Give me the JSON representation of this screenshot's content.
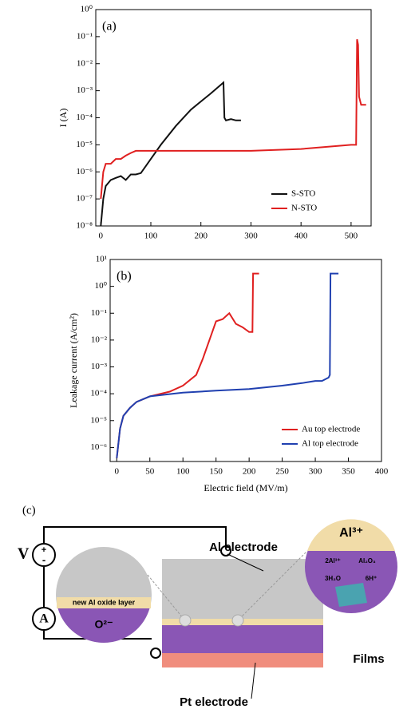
{
  "chart_data": [
    {
      "type": "line",
      "panel": "(a)",
      "y_label": "I (A)",
      "log": true,
      "legend": "lower right",
      "xlim": [
        -10,
        540
      ],
      "xticks": [
        0,
        100,
        200,
        300,
        400,
        500
      ],
      "ylim": [
        1e-08,
        1
      ],
      "yticks": [
        {
          "value": 1e-08,
          "label": "10⁻⁸"
        },
        {
          "value": 1e-07,
          "label": "10⁻⁷"
        },
        {
          "value": 1e-06,
          "label": "10⁻⁶"
        },
        {
          "value": 1e-05,
          "label": "10⁻⁵"
        },
        {
          "value": 0.0001,
          "label": "10⁻⁴"
        },
        {
          "value": 0.001,
          "label": "10⁻³"
        },
        {
          "value": 0.01,
          "label": "10⁻²"
        },
        {
          "value": 0.1,
          "label": "10⁻¹"
        },
        {
          "value": 1,
          "label": "10⁰"
        }
      ],
      "series": [
        {
          "name": "S-STO",
          "color": "#111111",
          "x": [
            0,
            5,
            10,
            20,
            30,
            40,
            50,
            60,
            70,
            80,
            100,
            120,
            150,
            180,
            200,
            220,
            245,
            247,
            250,
            260,
            270,
            280
          ],
          "values": [
            1e-08,
            1e-07,
            3e-07,
            5e-07,
            6e-07,
            7e-07,
            5e-07,
            8e-07,
            8e-07,
            9e-07,
            3e-06,
            1e-05,
            5e-05,
            0.0002,
            0.0004,
            0.0008,
            0.002,
            0.0001,
            8e-05,
            9e-05,
            8e-05,
            8e-05
          ]
        },
        {
          "name": "N-STO",
          "color": "#e02020",
          "x": [
            0,
            5,
            10,
            20,
            30,
            40,
            50,
            60,
            70,
            100,
            200,
            300,
            400,
            500,
            510,
            512,
            514,
            516,
            520,
            530
          ],
          "values": [
            1e-07,
            1e-06,
            2e-06,
            2e-06,
            3e-06,
            3e-06,
            4e-06,
            5e-06,
            6e-06,
            6e-06,
            6e-06,
            6e-06,
            7e-06,
            1e-05,
            1e-05,
            0.08,
            0.05,
            0.0006,
            0.0003,
            0.0003
          ]
        }
      ]
    },
    {
      "type": "line",
      "panel": "(b)",
      "x_label": "Electric field (MV/m)",
      "y_label": "Leakage current (A/cm²)",
      "log": true,
      "legend": "lower right",
      "xlim": [
        -10,
        400
      ],
      "xticks": [
        0,
        50,
        100,
        150,
        200,
        250,
        300,
        350,
        400
      ],
      "ylim": [
        3e-07,
        10
      ],
      "yticks": [
        {
          "value": 1e-06,
          "label": "10⁻⁶"
        },
        {
          "value": 1e-05,
          "label": "10⁻⁵"
        },
        {
          "value": 0.0001,
          "label": "10⁻⁴"
        },
        {
          "value": 0.001,
          "label": "10⁻³"
        },
        {
          "value": 0.01,
          "label": "10⁻²"
        },
        {
          "value": 0.1,
          "label": "10⁻¹"
        },
        {
          "value": 1,
          "label": "10⁰"
        },
        {
          "value": 10,
          "label": "10¹"
        }
      ],
      "series": [
        {
          "name": "Au top electrode",
          "color": "#e02020",
          "x": [
            0,
            5,
            10,
            20,
            30,
            50,
            80,
            100,
            120,
            130,
            140,
            150,
            160,
            170,
            180,
            190,
            200,
            205,
            206,
            215
          ],
          "values": [
            4e-07,
            5e-06,
            1.5e-05,
            3e-05,
            5e-05,
            8e-05,
            0.00012,
            0.0002,
            0.0005,
            0.002,
            0.01,
            0.05,
            0.06,
            0.1,
            0.04,
            0.03,
            0.02,
            0.02,
            3,
            3
          ]
        },
        {
          "name": "Al top electrode",
          "color": "#2040b0",
          "x": [
            0,
            5,
            10,
            20,
            30,
            50,
            100,
            150,
            200,
            250,
            280,
            300,
            310,
            320,
            322,
            323,
            335
          ],
          "values": [
            4e-07,
            5e-06,
            1.5e-05,
            3e-05,
            5e-05,
            8e-05,
            0.00011,
            0.00013,
            0.00015,
            0.0002,
            0.00025,
            0.0003,
            0.0003,
            0.0004,
            0.0005,
            3,
            3
          ]
        }
      ]
    }
  ],
  "diagram": {
    "panel": "(c)",
    "source": "V",
    "plus": "+",
    "minus": "-",
    "meter": "A",
    "top": "Al electrode",
    "oxide": "new Al oxide layer",
    "ion": "O²⁻",
    "bottom": "Pt electrode",
    "films": "Films",
    "al_ion": "Al³⁺",
    "reactant": "2Al³⁺",
    "product": "Al₂O₃",
    "water": "3H₂O",
    "proton": "6H⁺"
  }
}
